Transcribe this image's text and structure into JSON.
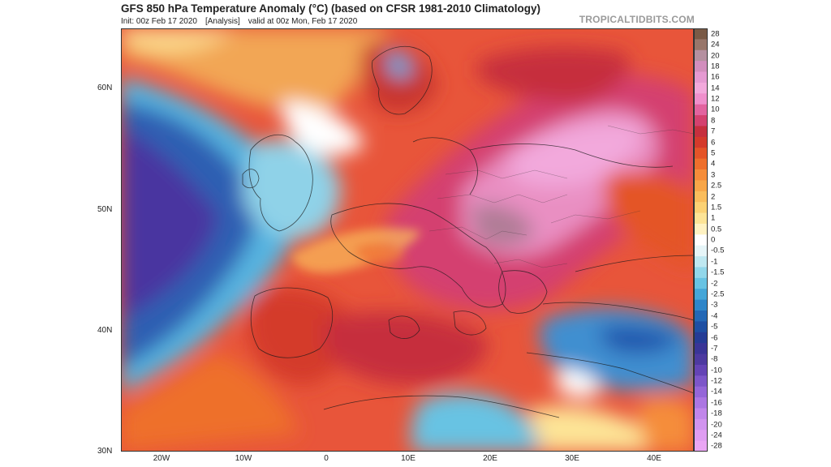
{
  "header": {
    "title": "GFS 850 hPa Temperature Anomaly (°C) (based on CFSR 1981-2010 Climatology)",
    "init": "Init: 00z Feb 17 2020",
    "analysis": "[Analysis]",
    "valid": "valid at 00z Mon, Feb 17 2020",
    "source": "TROPICALTIDBITS.COM"
  },
  "axes": {
    "lat_labels": [
      "60N",
      "50N",
      "40N",
      "30N"
    ],
    "lon_labels": [
      "20W",
      "10W",
      "0",
      "10E",
      "20E",
      "30E",
      "40E"
    ]
  },
  "colorbar": {
    "labels": [
      "28",
      "24",
      "20",
      "18",
      "16",
      "14",
      "12",
      "10",
      "8",
      "7",
      "6",
      "5",
      "4",
      "3",
      "2.5",
      "2",
      "1.5",
      "1",
      "0.5",
      "0",
      "-0.5",
      "-1",
      "-1.5",
      "-2",
      "-2.5",
      "-3",
      "-4",
      "-5",
      "-6",
      "-7",
      "-8",
      "-10",
      "-12",
      "-14",
      "-16",
      "-18",
      "-20",
      "-24",
      "-28"
    ],
    "colors": [
      "#7a5a46",
      "#98766a",
      "#b590a0",
      "#d28ebd",
      "#e59ad2",
      "#f2a9dc",
      "#ef8fcc",
      "#e2639f",
      "#d4416f",
      "#c62f3e",
      "#d43a2b",
      "#e45428",
      "#ee6f2c",
      "#f58d3a",
      "#f8a648",
      "#fabd5c",
      "#fcd274",
      "#fde496",
      "#fff2c2",
      "#ffffff",
      "#e6f5f8",
      "#bfe8f1",
      "#92d7ea",
      "#68c3e3",
      "#45a6d8",
      "#2f86c9",
      "#2468b6",
      "#1e4fa3",
      "#253c96",
      "#3a3597",
      "#4d3aa0",
      "#6444b5",
      "#7d56c9",
      "#9566d8",
      "#ac76e2",
      "#c186ea",
      "#d194ef",
      "#df9df2",
      "#eaa6f4"
    ]
  }
}
